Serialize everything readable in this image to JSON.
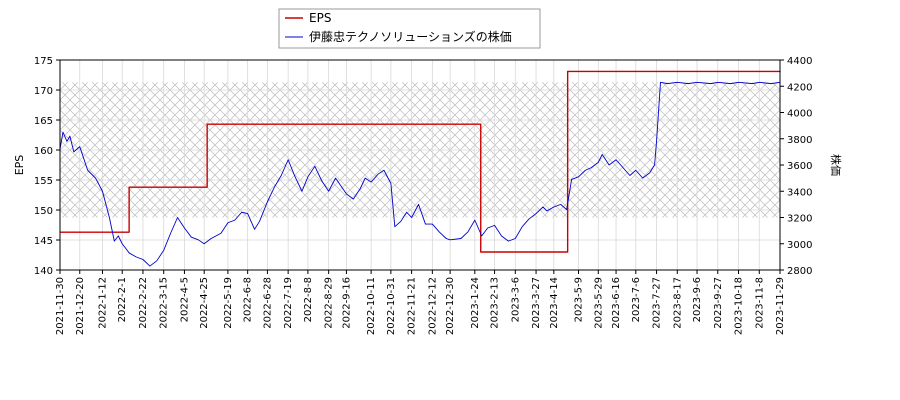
{
  "chart_data": {
    "type": "line",
    "x_type": "date",
    "xlim": [
      "2021-11-30",
      "2023-11-29"
    ],
    "x_ticks": [
      "2021-11-30",
      "2021-12-20",
      "2022-1-12",
      "2022-2-1",
      "2022-2-22",
      "2022-3-15",
      "2022-4-5",
      "2022-4-25",
      "2022-5-19",
      "2022-6-8",
      "2022-6-28",
      "2022-7-19",
      "2022-8-8",
      "2022-8-29",
      "2022-9-16",
      "2022-10-11",
      "2022-10-31",
      "2022-11-21",
      "2022-12-12",
      "2022-12-30",
      "2023-1-24",
      "2023-2-13",
      "2023-3-6",
      "2023-3-27",
      "2023-4-14",
      "2023-5-9",
      "2023-5-29",
      "2023-6-16",
      "2023-7-6",
      "2023-7-27",
      "2023-8-17",
      "2023-9-6",
      "2023-9-27",
      "2023-10-18",
      "2023-11-8",
      "2023-11-29"
    ],
    "y_left": {
      "label": "EPS",
      "lim": [
        140,
        175
      ],
      "ticks": [
        140,
        145,
        150,
        155,
        160,
        165,
        170,
        175
      ]
    },
    "y_right": {
      "label": "株価",
      "lim": [
        2800,
        4400
      ],
      "ticks": [
        2800,
        3000,
        3200,
        3400,
        3600,
        3800,
        4000,
        4200,
        4400
      ]
    },
    "legend": {
      "position": "top-center",
      "entries": [
        "EPS",
        "伊藤忠テクノソリューションズの株価"
      ]
    },
    "hatch_band": {
      "axis": "right",
      "range": [
        3200,
        4230
      ]
    },
    "series": [
      {
        "name": "EPS",
        "axis": "left",
        "color": "#cc0000",
        "step": true,
        "points": [
          [
            "2021-11-30",
            146.3
          ],
          [
            "2022-2-8",
            153.8
          ],
          [
            "2022-4-28",
            164.3
          ],
          [
            "2023-1-30",
            143.0
          ],
          [
            "2023-4-28",
            173.1
          ],
          [
            "2023-11-29",
            173.0
          ]
        ]
      },
      {
        "name": "伊藤忠テクノソリューションズの株価",
        "axis": "right",
        "color": "#0000cc",
        "points": [
          [
            "2021-11-30",
            3720
          ],
          [
            "2021-12-3",
            3850
          ],
          [
            "2021-12-7",
            3780
          ],
          [
            "2021-12-10",
            3820
          ],
          [
            "2021-12-14",
            3700
          ],
          [
            "2021-12-20",
            3740
          ],
          [
            "2021-12-24",
            3650
          ],
          [
            "2021-12-28",
            3560
          ],
          [
            "2022-1-5",
            3500
          ],
          [
            "2022-1-12",
            3400
          ],
          [
            "2022-1-19",
            3200
          ],
          [
            "2022-1-24",
            3020
          ],
          [
            "2022-1-28",
            3060
          ],
          [
            "2022-2-1",
            3000
          ],
          [
            "2022-2-8",
            2930
          ],
          [
            "2022-2-15",
            2900
          ],
          [
            "2022-2-22",
            2880
          ],
          [
            "2022-3-1",
            2830
          ],
          [
            "2022-3-8",
            2870
          ],
          [
            "2022-3-15",
            2950
          ],
          [
            "2022-3-22",
            3080
          ],
          [
            "2022-3-29",
            3200
          ],
          [
            "2022-4-5",
            3120
          ],
          [
            "2022-4-12",
            3050
          ],
          [
            "2022-4-19",
            3030
          ],
          [
            "2022-4-25",
            3000
          ],
          [
            "2022-5-2",
            3040
          ],
          [
            "2022-5-12",
            3080
          ],
          [
            "2022-5-19",
            3160
          ],
          [
            "2022-5-26",
            3180
          ],
          [
            "2022-6-2",
            3240
          ],
          [
            "2022-6-8",
            3230
          ],
          [
            "2022-6-15",
            3110
          ],
          [
            "2022-6-20",
            3170
          ],
          [
            "2022-6-28",
            3320
          ],
          [
            "2022-7-5",
            3430
          ],
          [
            "2022-7-12",
            3520
          ],
          [
            "2022-7-19",
            3640
          ],
          [
            "2022-7-26",
            3510
          ],
          [
            "2022-8-2",
            3400
          ],
          [
            "2022-8-8",
            3510
          ],
          [
            "2022-8-15",
            3590
          ],
          [
            "2022-8-22",
            3480
          ],
          [
            "2022-8-29",
            3400
          ],
          [
            "2022-9-5",
            3500
          ],
          [
            "2022-9-16",
            3380
          ],
          [
            "2022-9-23",
            3340
          ],
          [
            "2022-9-30",
            3420
          ],
          [
            "2022-10-5",
            3500
          ],
          [
            "2022-10-11",
            3470
          ],
          [
            "2022-10-18",
            3530
          ],
          [
            "2022-10-24",
            3560
          ],
          [
            "2022-10-31",
            3460
          ],
          [
            "2022-11-4",
            3130
          ],
          [
            "2022-11-10",
            3170
          ],
          [
            "2022-11-16",
            3240
          ],
          [
            "2022-11-21",
            3200
          ],
          [
            "2022-11-28",
            3300
          ],
          [
            "2022-12-5",
            3150
          ],
          [
            "2022-12-12",
            3150
          ],
          [
            "2022-12-19",
            3090
          ],
          [
            "2022-12-26",
            3040
          ],
          [
            "2022-12-30",
            3030
          ],
          [
            "2023-1-10",
            3040
          ],
          [
            "2023-1-17",
            3090
          ],
          [
            "2023-1-24",
            3180
          ],
          [
            "2023-1-31",
            3060
          ],
          [
            "2023-2-6",
            3120
          ],
          [
            "2023-2-13",
            3140
          ],
          [
            "2023-2-20",
            3060
          ],
          [
            "2023-2-27",
            3020
          ],
          [
            "2023-3-6",
            3040
          ],
          [
            "2023-3-13",
            3130
          ],
          [
            "2023-3-20",
            3190
          ],
          [
            "2023-3-27",
            3230
          ],
          [
            "2023-4-3",
            3280
          ],
          [
            "2023-4-7",
            3250
          ],
          [
            "2023-4-14",
            3280
          ],
          [
            "2023-4-21",
            3300
          ],
          [
            "2023-4-27",
            3260
          ],
          [
            "2023-5-2",
            3490
          ],
          [
            "2023-5-9",
            3510
          ],
          [
            "2023-5-16",
            3560
          ],
          [
            "2023-5-22",
            3580
          ],
          [
            "2023-5-29",
            3620
          ],
          [
            "2023-6-2",
            3680
          ],
          [
            "2023-6-9",
            3600
          ],
          [
            "2023-6-16",
            3640
          ],
          [
            "2023-6-23",
            3580
          ],
          [
            "2023-6-30",
            3520
          ],
          [
            "2023-7-6",
            3560
          ],
          [
            "2023-7-13",
            3500
          ],
          [
            "2023-7-20",
            3540
          ],
          [
            "2023-7-25",
            3600
          ],
          [
            "2023-7-27",
            3780
          ],
          [
            "2023-7-31",
            4230
          ],
          [
            "2023-8-7",
            4220
          ],
          [
            "2023-8-17",
            4230
          ],
          [
            "2023-8-28",
            4220
          ],
          [
            "2023-9-6",
            4230
          ],
          [
            "2023-9-20",
            4220
          ],
          [
            "2023-9-27",
            4230
          ],
          [
            "2023-10-10",
            4220
          ],
          [
            "2023-10-18",
            4230
          ],
          [
            "2023-11-1",
            4220
          ],
          [
            "2023-11-8",
            4230
          ],
          [
            "2023-11-20",
            4220
          ],
          [
            "2023-11-29",
            4230
          ]
        ]
      }
    ]
  }
}
